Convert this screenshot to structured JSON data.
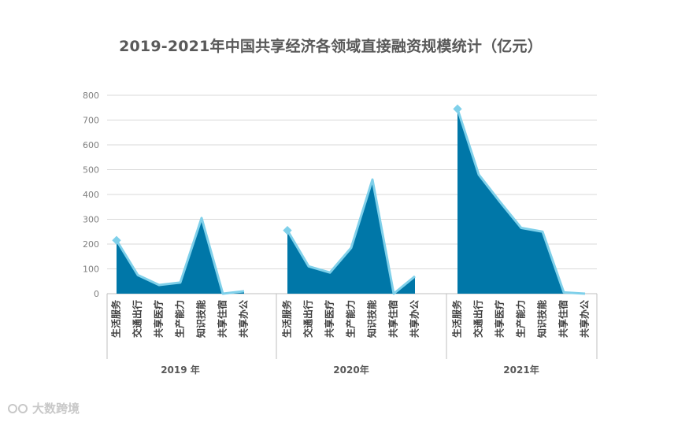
{
  "chart_data": {
    "type": "area",
    "title": "2019-2021年中国共享经济各领域直接融资规模统计（亿元）",
    "ylim": [
      0,
      800
    ],
    "yticks": [
      0,
      100,
      200,
      300,
      400,
      500,
      600,
      700,
      800
    ],
    "grid": true,
    "categories": [
      "生活服务",
      "交通出行",
      "共享医疗",
      "生产能力",
      "知识技能",
      "共享住宿",
      "共享办公"
    ],
    "groups": [
      {
        "label": "2019 年",
        "values": [
          215,
          75,
          35,
          45,
          305,
          0,
          10
        ]
      },
      {
        "label": "2020年",
        "values": [
          255,
          110,
          85,
          185,
          460,
          0,
          70
        ]
      },
      {
        "label": "2021年",
        "values": [
          745,
          480,
          370,
          265,
          250,
          5,
          0
        ]
      }
    ],
    "colors": {
      "fill": "#0077a8",
      "line": "#7fd0ea",
      "grid": "#d9d9d9",
      "axis": "#bfbfbf"
    }
  },
  "watermark": {
    "text": "大数跨境"
  }
}
